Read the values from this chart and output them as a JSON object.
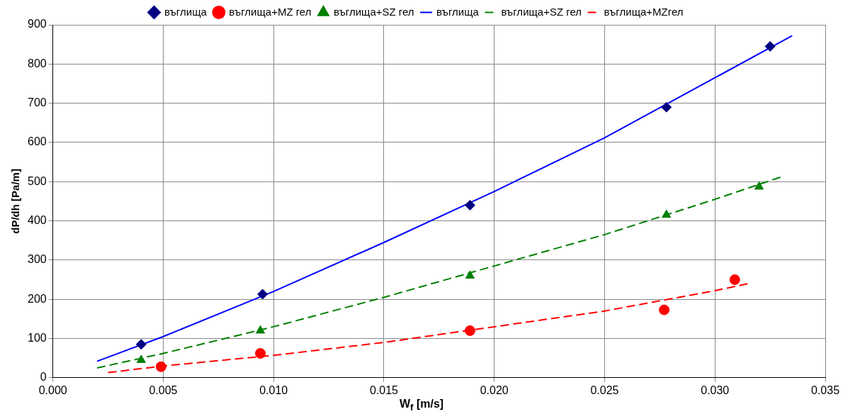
{
  "chart_data": {
    "type": "scatter",
    "xlabel": "W$_{f}$ [m/s]",
    "ylabel": "dP/dh [Pa/m]",
    "xlim": [
      0,
      0.035
    ],
    "ylim": [
      0,
      900
    ],
    "xticks": [
      {
        "value": 0,
        "label": "0.000"
      },
      {
        "value": 0.005,
        "label": "0.005"
      },
      {
        "value": 0.01,
        "label": "0.010"
      },
      {
        "value": 0.015,
        "label": "0.015"
      },
      {
        "value": 0.02,
        "label": "0.020"
      },
      {
        "value": 0.025,
        "label": "0.025"
      },
      {
        "value": 0.03,
        "label": "0.030"
      },
      {
        "value": 0.035,
        "label": "0.035"
      }
    ],
    "yticks": [
      0,
      100,
      200,
      300,
      400,
      500,
      600,
      700,
      800,
      900
    ],
    "grid": true,
    "legend": "top",
    "series": [
      {
        "name": "въглища",
        "marker": "diamond",
        "color": "#000080",
        "x": [
          0.004,
          0.0095,
          0.0189,
          0.0278,
          0.0325
        ],
        "values": [
          85,
          213,
          440,
          690,
          845
        ]
      },
      {
        "name": "въглища+MZ гел",
        "marker": "circle",
        "color": "#ff0000",
        "x": [
          0.0049,
          0.0094,
          0.0189,
          0.0277,
          0.0309
        ],
        "values": [
          28,
          62,
          120,
          173,
          250
        ]
      },
      {
        "name": "въглища+SZ гел",
        "marker": "triangle",
        "color": "#008000",
        "x": [
          0.004,
          0.0094,
          0.0189,
          0.0278,
          0.032
        ],
        "values": [
          45,
          120,
          260,
          415,
          487
        ]
      },
      {
        "name": "въглища",
        "type": "line",
        "marker": "none",
        "line_style": "solid",
        "color": "#0000ff",
        "x": [
          0.002,
          0.005,
          0.01,
          0.015,
          0.02,
          0.025,
          0.03,
          0.0335
        ],
        "values": [
          42,
          105,
          220,
          345,
          475,
          612,
          765,
          872
        ]
      },
      {
        "name": "въглища+SZ гел",
        "type": "line",
        "marker": "none",
        "line_style": "dashed",
        "color": "#008000",
        "x": [
          0.002,
          0.005,
          0.01,
          0.015,
          0.02,
          0.025,
          0.03,
          0.033
        ],
        "values": [
          25,
          62,
          130,
          205,
          285,
          365,
          455,
          512
        ]
      },
      {
        "name": "въглища+MZгел",
        "type": "line",
        "marker": "none",
        "line_style": "dashed",
        "color": "#ff0000",
        "x": [
          0.0025,
          0.005,
          0.01,
          0.015,
          0.02,
          0.025,
          0.03,
          0.0315
        ],
        "values": [
          13,
          30,
          57,
          90,
          130,
          170,
          222,
          240
        ]
      }
    ]
  }
}
